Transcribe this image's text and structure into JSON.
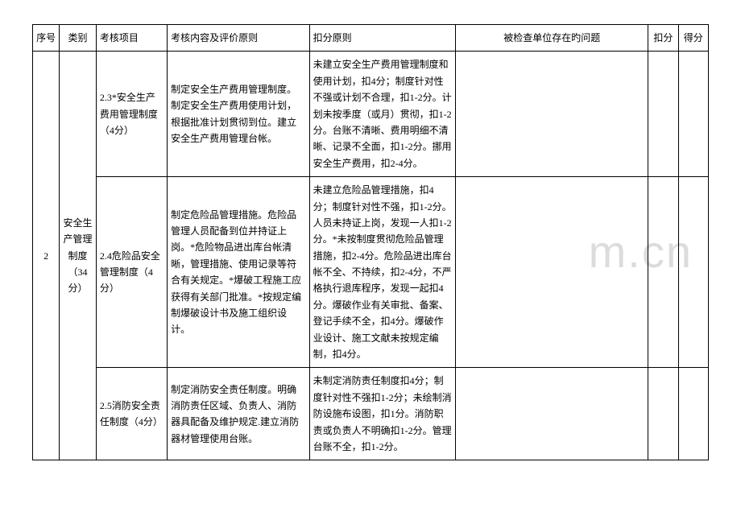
{
  "watermark": "m.cn",
  "header": {
    "seq": "序号",
    "category": "类别",
    "project": "考核项目",
    "content": "考核内容及评价原则",
    "deduct_rule": "扣分原则",
    "problem": "被检查单位存在旳问题",
    "deduct": "扣分",
    "score": "得分"
  },
  "rows": [
    {
      "seq": "2",
      "category": "安全生产管理制度（34分）",
      "project": "2.3*安全生产费用管理制度（4分）",
      "content": "制定安全生产费用管理制度。制定安全生产费用使用计划，根据批准计划贯彻到位。建立安全生产费用管理台帐。",
      "deduct_rule": "未建立安全生产费用管理制度和使用计划，扣4分；制度针对性不强或计划不合理，扣1-2分。计划未按季度（或月）贯彻，扣1-2分。台账不清晰、费用明细不清晰、记录不全面，扣1-2分。挪用安全生产费用，扣2-4分。"
    },
    {
      "project": "2.4危险品安全管理制度（4分）",
      "content": "制定危险品管理措施。危险品管理人员配备到位并持证上岗。*危险物品进出库台帐清晰，管理措施、使用记录等符合有关规定。*爆破工程施工应获得有关部门批准。*按规定编制爆破设计书及施工组织设计。",
      "deduct_rule": "未建立危险品管理措施，扣4分；制度针对性不强，扣1-2分。人员未持证上岗，发现一人扣1-2分。*未按制度贯彻危险品管理措施，扣2-4分。危险品进出库台帐不全、不持续，扣2-4分，不严格执行退库程序，发现一起扣4分。爆破作业有关审批、备案、登记手续不全，扣4分。爆破作业设计、施工文献未按规定编制，扣4分。"
    },
    {
      "project": "2.5消防安全责任制度（4分）",
      "content": "制定消防安全责任制度。明确消防责任区域、负责人、消防器具配备及维护规定.建立消防器材管理使用台账。",
      "deduct_rule": "未制定消防责任制度扣4分；制度针对性不强扣1-2分；未绘制消防设施布设图，扣1分。消防职责或负责人不明确扣1-2分。管理台账不全，扣1-2分。"
    }
  ]
}
